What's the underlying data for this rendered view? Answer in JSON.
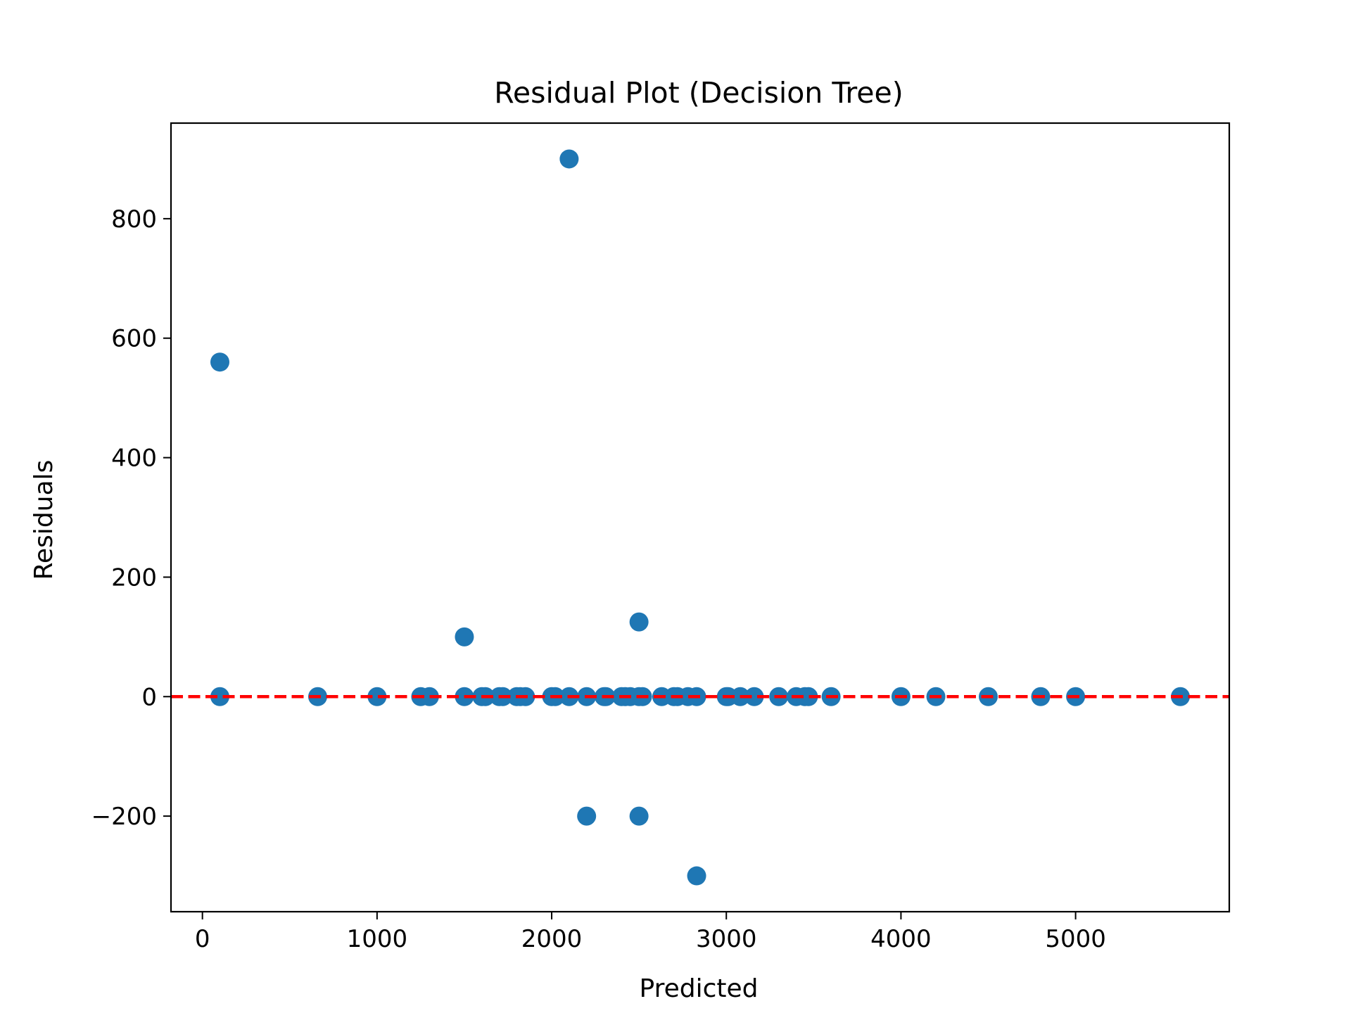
{
  "chart_data": {
    "type": "scatter",
    "title": "Residual Plot (Decision Tree)",
    "xlabel": "Predicted",
    "ylabel": "Residuals",
    "xlim": [
      -180,
      5880
    ],
    "ylim": [
      -360,
      960
    ],
    "xticks": [
      0,
      1000,
      2000,
      3000,
      4000,
      5000
    ],
    "yticks": [
      -200,
      0,
      200,
      400,
      600,
      800
    ],
    "xtick_labels": [
      "0",
      "1000",
      "2000",
      "3000",
      "4000",
      "5000"
    ],
    "ytick_labels": [
      "−200",
      "0",
      "200",
      "400",
      "600",
      "800"
    ],
    "grid": false,
    "reference_line": {
      "y": 0,
      "color": "#ff0000",
      "style": "dashed"
    },
    "marker_color": "#1f77b4",
    "series": [
      {
        "x": [
          100,
          100,
          660,
          1000,
          1250,
          1300,
          1500,
          1500,
          1600,
          1620,
          1700,
          1720,
          1800,
          1820,
          1850,
          2000,
          2020,
          2100,
          2100,
          2200,
          2200,
          2300,
          2310,
          2400,
          2420,
          2450,
          2500,
          2500,
          2500,
          2520,
          2630,
          2700,
          2720,
          2780,
          2830,
          2830,
          3000,
          3010,
          3080,
          3160,
          3300,
          3400,
          3450,
          3470,
          3600,
          4000,
          4200,
          4500,
          4800,
          5000,
          5600
        ],
        "y": [
          560,
          0,
          0,
          0,
          0,
          0,
          100,
          0,
          0,
          0,
          0,
          0,
          0,
          0,
          0,
          0,
          0,
          900,
          0,
          0,
          -200,
          0,
          0,
          0,
          0,
          0,
          125,
          0,
          -200,
          0,
          0,
          0,
          0,
          0,
          0,
          -300,
          0,
          0,
          0,
          0,
          0,
          0,
          0,
          0,
          0,
          0,
          0,
          0,
          0,
          0,
          0
        ]
      }
    ]
  }
}
